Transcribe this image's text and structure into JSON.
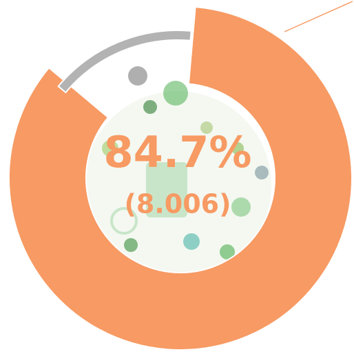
{
  "chart_data": {
    "type": "donut",
    "values": [
      84.7,
      15.3
    ],
    "value_labels": [
      "84.7%",
      null
    ],
    "colors": [
      "#f79a63",
      "#b3b3b3"
    ],
    "center_subtitle": "(8.006)"
  }
}
